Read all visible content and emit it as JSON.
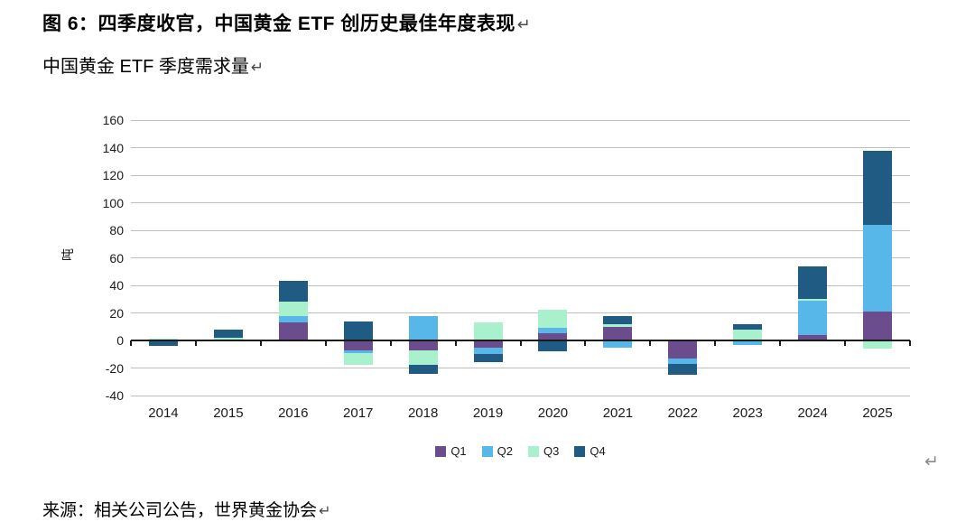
{
  "page": {
    "title": "图 6：四季度收官，中国黄金 ETF 创历史最佳年度表现",
    "subtitle": "中国黄金 ETF 季度需求量",
    "source": "来源：相关公司公告，世界黄金协会",
    "return_mark": "↵"
  },
  "chart_data": {
    "type": "bar",
    "stacked": true,
    "title": "中国黄金 ETF 季度需求量",
    "xlabel": "",
    "ylabel": "吨",
    "ylim": [
      -40,
      160
    ],
    "ytick_step": 20,
    "grid": true,
    "legend_position": "bottom",
    "categories": [
      "2014",
      "2015",
      "2016",
      "2017",
      "2018",
      "2019",
      "2020",
      "2021",
      "2022",
      "2023",
      "2024",
      "2025"
    ],
    "series": [
      {
        "name": "Q1",
        "color": "#6B4C8C",
        "values": [
          0,
          0,
          13,
          -7,
          -7,
          -5,
          5,
          10,
          -13,
          0,
          4,
          21
        ]
      },
      {
        "name": "Q2",
        "color": "#56B7E8",
        "values": [
          0,
          0,
          5,
          -2,
          18,
          -5,
          4,
          -5,
          -4,
          -3,
          25,
          63
        ]
      },
      {
        "name": "Q3",
        "color": "#A9F0CD",
        "values": [
          1.5,
          2,
          10,
          -9,
          -11,
          13,
          13,
          2,
          0,
          8,
          1,
          -6
        ]
      },
      {
        "name": "Q4",
        "color": "#1F5B83",
        "values": [
          -4,
          6,
          15,
          14,
          -6,
          -6,
          -8,
          6,
          -8,
          4,
          24,
          54
        ]
      }
    ]
  }
}
